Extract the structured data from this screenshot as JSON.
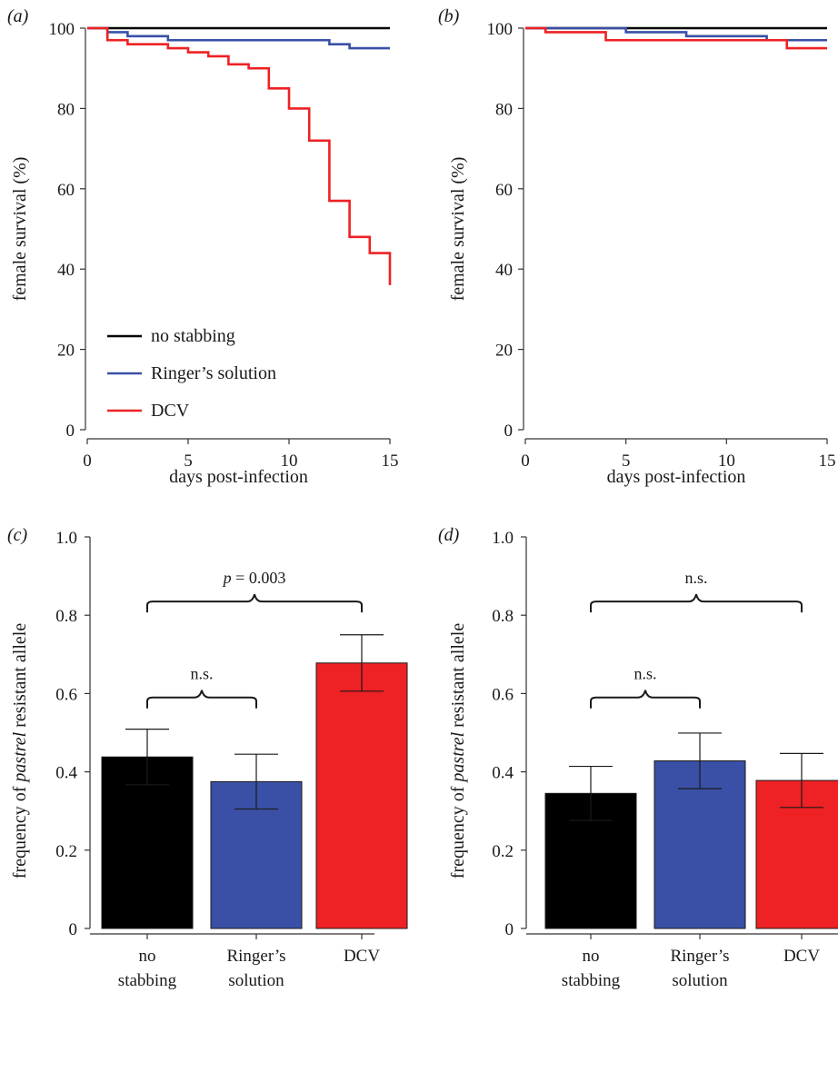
{
  "colors": {
    "no_stabbing": "#000000",
    "ringers": "#3a50a6",
    "dcv": "#ee2124",
    "axis": "#333333"
  },
  "chart_data": [
    {
      "panel": "(a)",
      "type": "line",
      "step": true,
      "xlabel": "days post-infection",
      "ylabel": "female survival (%)",
      "xlim": [
        0,
        15
      ],
      "ylim": [
        0,
        100
      ],
      "xticks": [
        0,
        5,
        10,
        15
      ],
      "yticks": [
        0,
        20,
        40,
        60,
        80,
        100
      ],
      "legend": {
        "position": "bottom-left"
      },
      "series": [
        {
          "name": "no stabbing",
          "color": "#000000",
          "x": [
            0,
            15
          ],
          "y": [
            100,
            100
          ]
        },
        {
          "name": "Ringer’s solution",
          "color": "#3a50a6",
          "x": [
            0,
            1,
            2,
            4,
            12,
            13,
            15
          ],
          "y": [
            100,
            99,
            98,
            97,
            96,
            95,
            95
          ]
        },
        {
          "name": "DCV",
          "color": "#ee2124",
          "x": [
            0,
            1,
            2,
            4,
            5,
            6,
            7,
            8,
            9,
            10,
            11,
            12,
            13,
            14,
            15
          ],
          "y": [
            100,
            97,
            96,
            95,
            94,
            93,
            91,
            90,
            85,
            80,
            72,
            57,
            48,
            44,
            36
          ]
        }
      ]
    },
    {
      "panel": "(b)",
      "type": "line",
      "step": true,
      "xlabel": "days post-infection",
      "ylabel": "female survival (%)",
      "xlim": [
        0,
        15
      ],
      "ylim": [
        0,
        100
      ],
      "xticks": [
        0,
        5,
        10,
        15
      ],
      "yticks": [
        0,
        20,
        40,
        60,
        80,
        100
      ],
      "series": [
        {
          "name": "no stabbing",
          "color": "#000000",
          "x": [
            0,
            15
          ],
          "y": [
            100,
            100
          ]
        },
        {
          "name": "Ringer’s solution",
          "color": "#3a50a6",
          "x": [
            0,
            5,
            8,
            12,
            15
          ],
          "y": [
            100,
            99,
            98,
            97,
            97
          ]
        },
        {
          "name": "DCV",
          "color": "#ee2124",
          "x": [
            0,
            1,
            4,
            13,
            15
          ],
          "y": [
            100,
            99,
            97,
            95,
            95
          ]
        }
      ]
    },
    {
      "panel": "(c)",
      "type": "bar",
      "ylabel_prefix": "frequency of ",
      "ylabel_italic": "pastrel",
      "ylabel_suffix": " resistant allele",
      "ylim": [
        0,
        1.0
      ],
      "yticks": [
        "0",
        "0.2",
        "0.4",
        "0.6",
        "0.8",
        "1.0"
      ],
      "categories": [
        {
          "line1": "no",
          "line2": "stabbing"
        },
        {
          "line1": "Ringer’s",
          "line2": "solution"
        },
        {
          "line1": "DCV",
          "line2": ""
        }
      ],
      "values": [
        0.438,
        0.375,
        0.678
      ],
      "errors": [
        0.071,
        0.07,
        0.072
      ],
      "colors": [
        "#000000",
        "#3a50a6",
        "#ee2124"
      ],
      "comparisons": [
        {
          "from": 0,
          "to": 1,
          "y": 0.59,
          "label": "n.s.",
          "italic_p": false
        },
        {
          "from": 0,
          "to": 2,
          "y": 0.835,
          "label": " = 0.003",
          "italic_p": true,
          "p": "p"
        }
      ]
    },
    {
      "panel": "(d)",
      "type": "bar",
      "ylabel_prefix": "frequency of ",
      "ylabel_italic": "pastrel",
      "ylabel_suffix": " resistant allele",
      "ylim": [
        0,
        1.0
      ],
      "yticks": [
        "0",
        "0.2",
        "0.4",
        "0.6",
        "0.8",
        "1.0"
      ],
      "categories": [
        {
          "line1": "no",
          "line2": "stabbing"
        },
        {
          "line1": "Ringer’s",
          "line2": "solution"
        },
        {
          "line1": "DCV",
          "line2": ""
        }
      ],
      "values": [
        0.345,
        0.428,
        0.378
      ],
      "errors": [
        0.069,
        0.071,
        0.069
      ],
      "colors": [
        "#000000",
        "#3a50a6",
        "#ee2124"
      ],
      "comparisons": [
        {
          "from": 0,
          "to": 1,
          "y": 0.59,
          "label": "n.s.",
          "italic_p": false
        },
        {
          "from": 0,
          "to": 2,
          "y": 0.835,
          "label": "n.s.",
          "italic_p": false
        }
      ]
    }
  ]
}
